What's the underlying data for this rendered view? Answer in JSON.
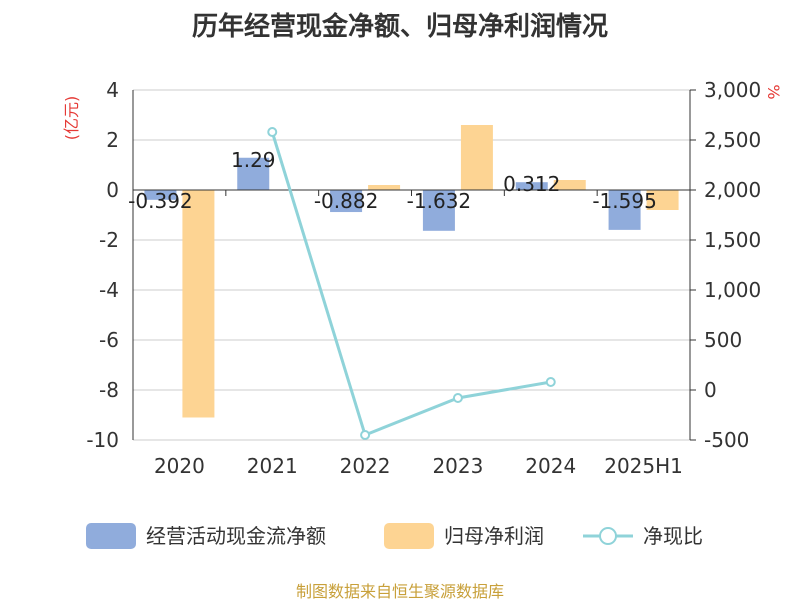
{
  "title": "历年经营现金净额、归母净利润情况",
  "source": "制图数据来自恒生聚源数据库",
  "colors": {
    "cash_flow": "#90acdc",
    "net_profit": "#fdd493",
    "ratio": "#8fd3d9",
    "grid": "#cccccc",
    "axis": "#333333",
    "unit": "#e53935"
  },
  "chart_data": {
    "type": "bar",
    "categories": [
      "2020",
      "2021",
      "2022",
      "2023",
      "2024",
      "2025H1"
    ],
    "series": [
      {
        "name": "经营活动现金流净额",
        "type": "bar",
        "axis": "left",
        "values": [
          -0.392,
          1.29,
          -0.882,
          -1.632,
          0.312,
          -1.595
        ],
        "labels": [
          "-0.392",
          "1.29",
          "-0.882",
          "-1.632",
          "0.312",
          "-1.595"
        ]
      },
      {
        "name": "归母净利润",
        "type": "bar",
        "axis": "left",
        "values": [
          -9.1,
          0,
          0.2,
          2.6,
          0.4,
          -0.8
        ]
      },
      {
        "name": "净现比",
        "type": "line",
        "axis": "right",
        "values": [
          null,
          2580,
          -450,
          -80,
          80,
          null
        ]
      }
    ],
    "y_left": {
      "label": "(亿元)",
      "ylim": [
        -10,
        4
      ],
      "ticks": [
        "4",
        "2",
        "0",
        "-2",
        "-4",
        "-6",
        "-8",
        "-10"
      ]
    },
    "y_right": {
      "label": "%",
      "ylim": [
        -500,
        3000
      ],
      "ticks": [
        "3,000",
        "2,500",
        "2,000",
        "1,500",
        "1,000",
        "500",
        "0",
        "-500"
      ]
    },
    "grid": true,
    "legend": "bottom"
  }
}
